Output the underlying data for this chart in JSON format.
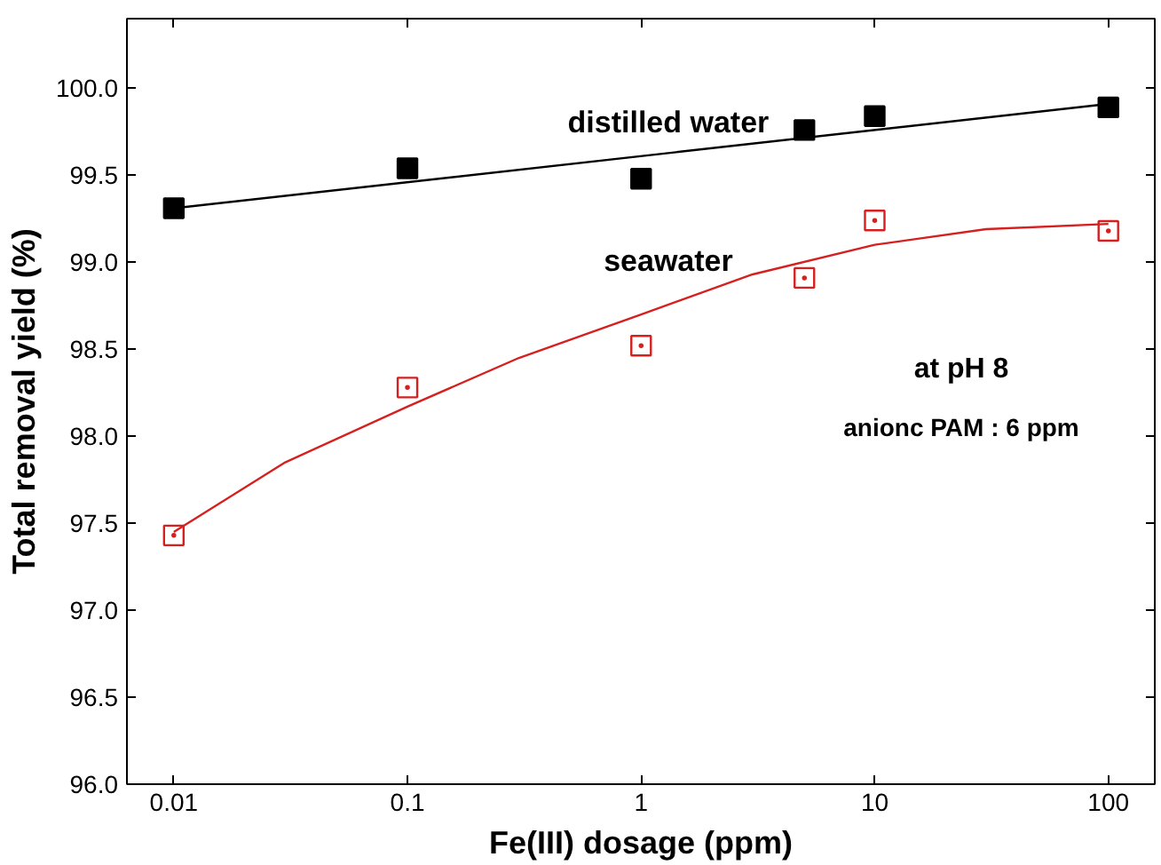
{
  "chart_data": {
    "type": "scatter",
    "xlabel": "Fe(III) dosage (ppm)",
    "ylabel": "Total removal yield (%)",
    "log": "x",
    "xlim": [
      0.0063,
      158
    ],
    "xticks": [
      0.01,
      0.1,
      1,
      10,
      100
    ],
    "ylim": [
      96,
      100.4
    ],
    "yticks": [
      {
        "value": 96,
        "label": "96.0"
      },
      {
        "value": 96.5,
        "label": "96.5"
      },
      {
        "value": 97,
        "label": "97.0"
      },
      {
        "value": 97.5,
        "label": "97.5"
      },
      {
        "value": 98,
        "label": "98.0"
      },
      {
        "value": 98.5,
        "label": "98.5"
      },
      {
        "value": 99,
        "label": "99.0"
      },
      {
        "value": 99.5,
        "label": "99.5"
      },
      {
        "value": 100,
        "label": "100.0"
      }
    ],
    "grid": false,
    "series": [
      {
        "name": "distilled water",
        "marker": "square",
        "color": "#000000",
        "x": [
          0.01,
          0.1,
          1,
          5,
          10,
          100
        ],
        "values": [
          99.31,
          99.54,
          99.48,
          99.76,
          99.84,
          99.89
        ]
      },
      {
        "name": "seawater",
        "marker": "square_open",
        "color": "#d62020",
        "x": [
          0.01,
          0.1,
          1,
          5,
          10,
          100
        ],
        "values": [
          97.43,
          98.28,
          98.52,
          98.91,
          99.24,
          99.18
        ]
      },
      {
        "type": "line",
        "marker": "none",
        "color": "#000000",
        "x": [
          0.01,
          100
        ],
        "values": [
          99.31,
          99.91
        ]
      },
      {
        "type": "line",
        "marker": "none",
        "color": "#d62020",
        "x": [
          0.01,
          0.03,
          0.1,
          0.3,
          1,
          3,
          10,
          30,
          100
        ],
        "values": [
          97.45,
          97.85,
          98.17,
          98.45,
          98.7,
          98.93,
          99.1,
          99.19,
          99.22
        ]
      }
    ],
    "annotations": [
      "at pH 8",
      "anionc PAM : 6 ppm"
    ]
  }
}
